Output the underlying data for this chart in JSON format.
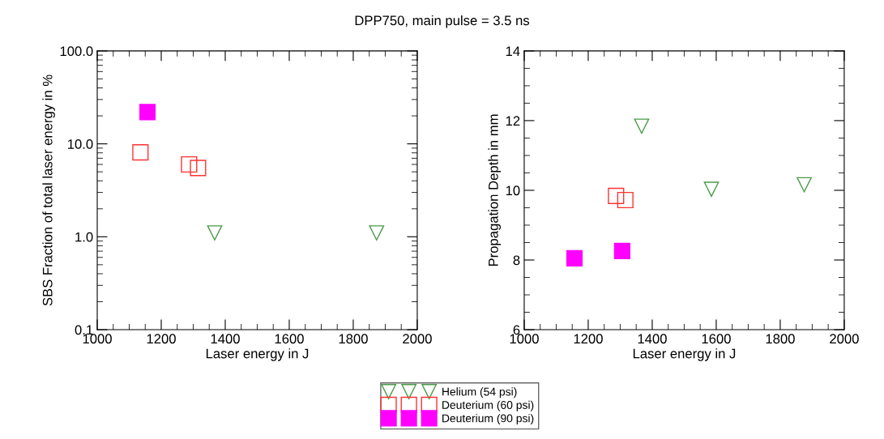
{
  "chart_data": [
    {
      "type": "scatter",
      "title": "DPP750, main pulse = 3.5 ns",
      "xlabel": "Laser energy in J",
      "ylabel": "SBS Fraction of total laser energy in %",
      "log": "y",
      "xlim": [
        1000,
        2000
      ],
      "xticks": [
        1000,
        1200,
        1400,
        1600,
        1800,
        2000
      ],
      "ylim": [
        0.1,
        100
      ],
      "yticks": [
        {
          "value": 0.1,
          "label": "0.1"
        },
        {
          "value": 1,
          "label": "1.0"
        },
        {
          "value": 10,
          "label": "10.0"
        },
        {
          "value": 100,
          "label": "100.0"
        }
      ],
      "grid": false,
      "legend": "bottom",
      "series": [
        {
          "name": "Helium (54 psi)",
          "color": "#4a9a4a",
          "marker": "triangle",
          "x": [
            1367,
            1873
          ],
          "values": [
            1.1,
            1.1
          ]
        },
        {
          "name": "Deuterium (60 psi)",
          "color": "#ff3333",
          "marker": "square",
          "x": [
            1135,
            1287,
            1315
          ],
          "values": [
            8.1,
            6.0,
            5.5
          ]
        },
        {
          "name": "Deuterium (90 psi)",
          "color": "#ff00ff",
          "colors": [
            "#ff00ff"
          ],
          "marker": "square",
          "x": [
            1157
          ],
          "values": [
            22
          ]
        }
      ]
    },
    {
      "type": "scatter",
      "xlabel": "Laser energy in J",
      "ylabel": "Propagation Depth in mm",
      "xlim": [
        1000,
        2000
      ],
      "xticks": [
        1000,
        1200,
        1400,
        1600,
        1800,
        2000
      ],
      "ylim": [
        6,
        14
      ],
      "yticks": [
        6,
        8,
        10,
        12,
        14
      ],
      "grid": false,
      "legend": "bottom",
      "series": [
        {
          "name": "Helium (54 psi)",
          "color": "#4a9a4a",
          "marker": "triangle",
          "x": [
            1367,
            1585,
            1875
          ],
          "values": [
            11.84,
            10.03,
            10.16
          ]
        },
        {
          "name": "Deuterium (60 psi)",
          "color": "#ff3333",
          "marker": "square",
          "x": [
            1287,
            1316
          ],
          "values": [
            9.84,
            9.72
          ]
        },
        {
          "name": "Deuterium (90 psi)",
          "color": "#ff00ff",
          "colors": [
            "#ff00ff",
            "#ff00ff"
          ],
          "marker": "square",
          "x": [
            1157,
            1306
          ],
          "values": [
            8.05,
            8.26
          ]
        }
      ]
    }
  ]
}
